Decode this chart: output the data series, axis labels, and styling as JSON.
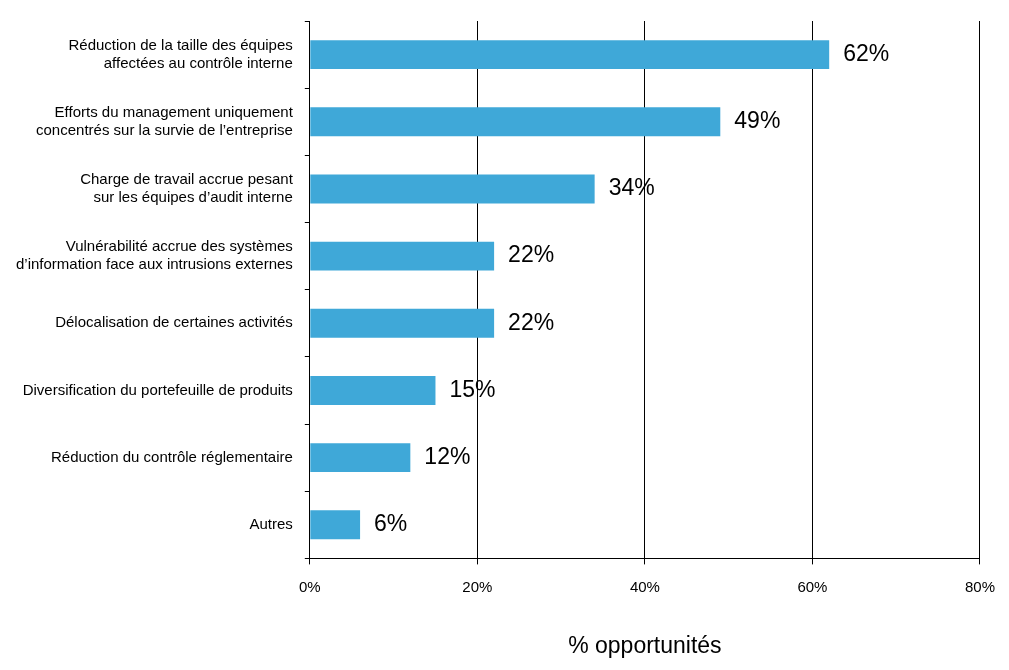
{
  "chart_data": {
    "type": "bar",
    "orientation": "horizontal",
    "xlabel": "% opportunités",
    "categories": [
      "Réduction de la taille des équipes\naffectées au contrôle interne",
      "Efforts du management uniquement\nconcentrés sur la survie de l’entreprise",
      "Charge de travail accrue pesant\nsur les équipes d’audit interne",
      "Vulnérabilité accrue des systèmes\nd’information face aux intrusions externes",
      "Délocalisation de certaines activités",
      "Diversification du portefeuille de produits",
      "Réduction du contrôle réglementaire",
      "Autres"
    ],
    "values": [
      62,
      49,
      34,
      22,
      22,
      15,
      12,
      6
    ],
    "value_labels": [
      "62%",
      "49%",
      "34%",
      "22%",
      "22%",
      "15%",
      "12%",
      "6%"
    ],
    "color": "#3fa8d8",
    "xlim": [
      0,
      80
    ],
    "xticks": [
      {
        "value": 0,
        "label": "0%"
      },
      {
        "value": 20,
        "label": "20%"
      },
      {
        "value": 40,
        "label": "40%"
      },
      {
        "value": 60,
        "label": "60%"
      },
      {
        "value": 80,
        "label": "80%"
      }
    ],
    "grid": "x",
    "legend": false
  }
}
